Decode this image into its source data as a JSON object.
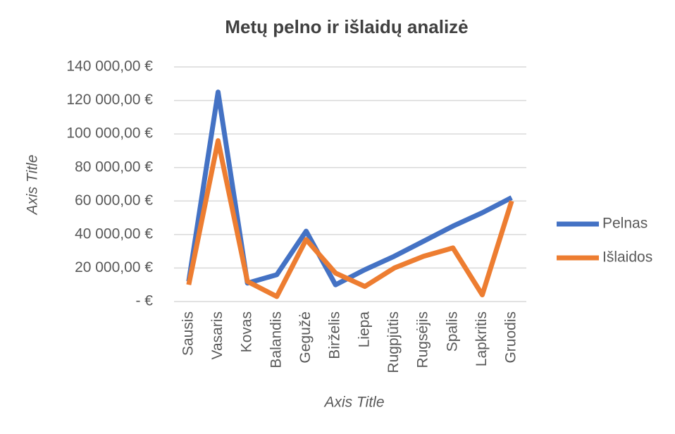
{
  "chart_data": {
    "type": "line",
    "title": "Metų pelno ir išlaidų analizė",
    "x_axis_title": "Axis Title",
    "y_axis_title": "Axis Title",
    "categories": [
      "Sausis",
      "Vasaris",
      "Kovas",
      "Balandis",
      "Gegužė",
      "Birželis",
      "Liepa",
      "Rugpjūtis",
      "Rugsėjis",
      "Spalis",
      "Lapkritis",
      "Gruodis"
    ],
    "series": [
      {
        "name": "Pelnas",
        "color": "#4472c4",
        "values": [
          12000,
          125000,
          11000,
          16000,
          42000,
          10000,
          19000,
          27000,
          36000,
          45000,
          53000,
          62000
        ]
      },
      {
        "name": "Išlaidos",
        "color": "#ed7d31",
        "values": [
          10000,
          96000,
          12000,
          3000,
          37000,
          17000,
          9000,
          20000,
          27000,
          32000,
          4000,
          60000
        ]
      }
    ],
    "ylim": [
      0,
      140000
    ],
    "yticks": [
      {
        "value": 0,
        "label": "-  €"
      },
      {
        "value": 20000,
        "label": "20 000,00 €"
      },
      {
        "value": 40000,
        "label": "40 000,00 €"
      },
      {
        "value": 60000,
        "label": "60 000,00 €"
      },
      {
        "value": 80000,
        "label": "80 000,00 €"
      },
      {
        "value": 100000,
        "label": "100 000,00 €"
      },
      {
        "value": 120000,
        "label": "120 000,00 €"
      },
      {
        "value": 140000,
        "label": "140 000,00 €"
      }
    ],
    "grid": true,
    "legend": "right"
  }
}
